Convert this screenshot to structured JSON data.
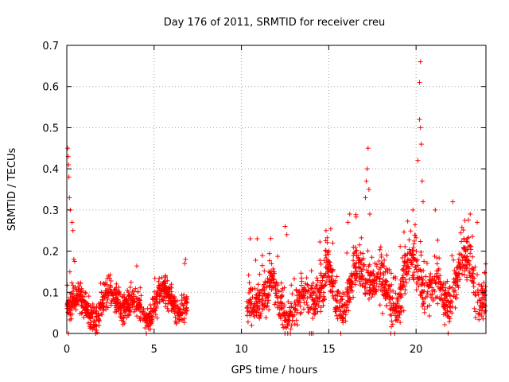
{
  "chart_data": {
    "type": "scatter",
    "title": "Day 176 of 2011, SRMTID for receiver creu",
    "xlabel": "GPS time / hours",
    "ylabel": "SRMTID / TECUs",
    "xlim": [
      0,
      24
    ],
    "ylim": [
      0,
      0.7
    ],
    "xticks": [
      0,
      5,
      10,
      15,
      20
    ],
    "yticks": [
      0,
      0.1,
      0.2,
      0.3,
      0.4,
      0.5,
      0.6,
      0.7
    ],
    "xtick_labels": [
      "0",
      "5",
      "10",
      "15",
      "20"
    ],
    "ytick_labels": [
      "0",
      "0.1",
      "0.2",
      "0.3",
      "0.4",
      "0.5",
      "0.6",
      "0.7"
    ],
    "grid": true,
    "marker": "+",
    "color": "#ff0000",
    "series": [
      {
        "name": "SRMTID",
        "segments": [
          {
            "x_range": [
              0.0,
              6.9
            ],
            "base": 0.07,
            "spread": 0.05,
            "density": 110
          },
          {
            "x_range": [
              10.3,
              14.8
            ],
            "base": 0.08,
            "spread": 0.07,
            "density": 95
          },
          {
            "x_range": [
              14.8,
              24.0
            ],
            "base": 0.12,
            "spread": 0.08,
            "density": 100
          }
        ],
        "notable_points": [
          {
            "x": 0.05,
            "y": 0.45
          },
          {
            "x": 0.08,
            "y": 0.43
          },
          {
            "x": 0.1,
            "y": 0.41
          },
          {
            "x": 0.12,
            "y": 0.38
          },
          {
            "x": 0.15,
            "y": 0.33
          },
          {
            "x": 0.2,
            "y": 0.3
          },
          {
            "x": 0.3,
            "y": 0.27
          },
          {
            "x": 0.35,
            "y": 0.25
          },
          {
            "x": 0.4,
            "y": 0.18
          },
          {
            "x": 0.45,
            "y": 0.175
          },
          {
            "x": 0.1,
            "y": 0.0
          },
          {
            "x": 6.8,
            "y": 0.18
          },
          {
            "x": 6.75,
            "y": 0.17
          },
          {
            "x": 10.5,
            "y": 0.23
          },
          {
            "x": 10.9,
            "y": 0.23
          },
          {
            "x": 12.5,
            "y": 0.26
          },
          {
            "x": 12.6,
            "y": 0.24
          },
          {
            "x": 16.1,
            "y": 0.27
          },
          {
            "x": 16.2,
            "y": 0.29
          },
          {
            "x": 17.1,
            "y": 0.33
          },
          {
            "x": 17.15,
            "y": 0.37
          },
          {
            "x": 17.2,
            "y": 0.4
          },
          {
            "x": 17.25,
            "y": 0.45
          },
          {
            "x": 17.3,
            "y": 0.35
          },
          {
            "x": 17.35,
            "y": 0.29
          },
          {
            "x": 20.1,
            "y": 0.42
          },
          {
            "x": 20.2,
            "y": 0.52
          },
          {
            "x": 20.25,
            "y": 0.5
          },
          {
            "x": 20.3,
            "y": 0.46
          },
          {
            "x": 20.35,
            "y": 0.37
          },
          {
            "x": 20.2,
            "y": 0.61
          },
          {
            "x": 20.25,
            "y": 0.66
          },
          {
            "x": 20.4,
            "y": 0.32
          },
          {
            "x": 21.1,
            "y": 0.3
          },
          {
            "x": 22.1,
            "y": 0.32
          },
          {
            "x": 23.1,
            "y": 0.29
          },
          {
            "x": 23.5,
            "y": 0.27
          },
          {
            "x": 14.0,
            "y": 0.0
          },
          {
            "x": 13.9,
            "y": 0.0
          },
          {
            "x": 14.1,
            "y": 0.0
          }
        ]
      }
    ]
  }
}
